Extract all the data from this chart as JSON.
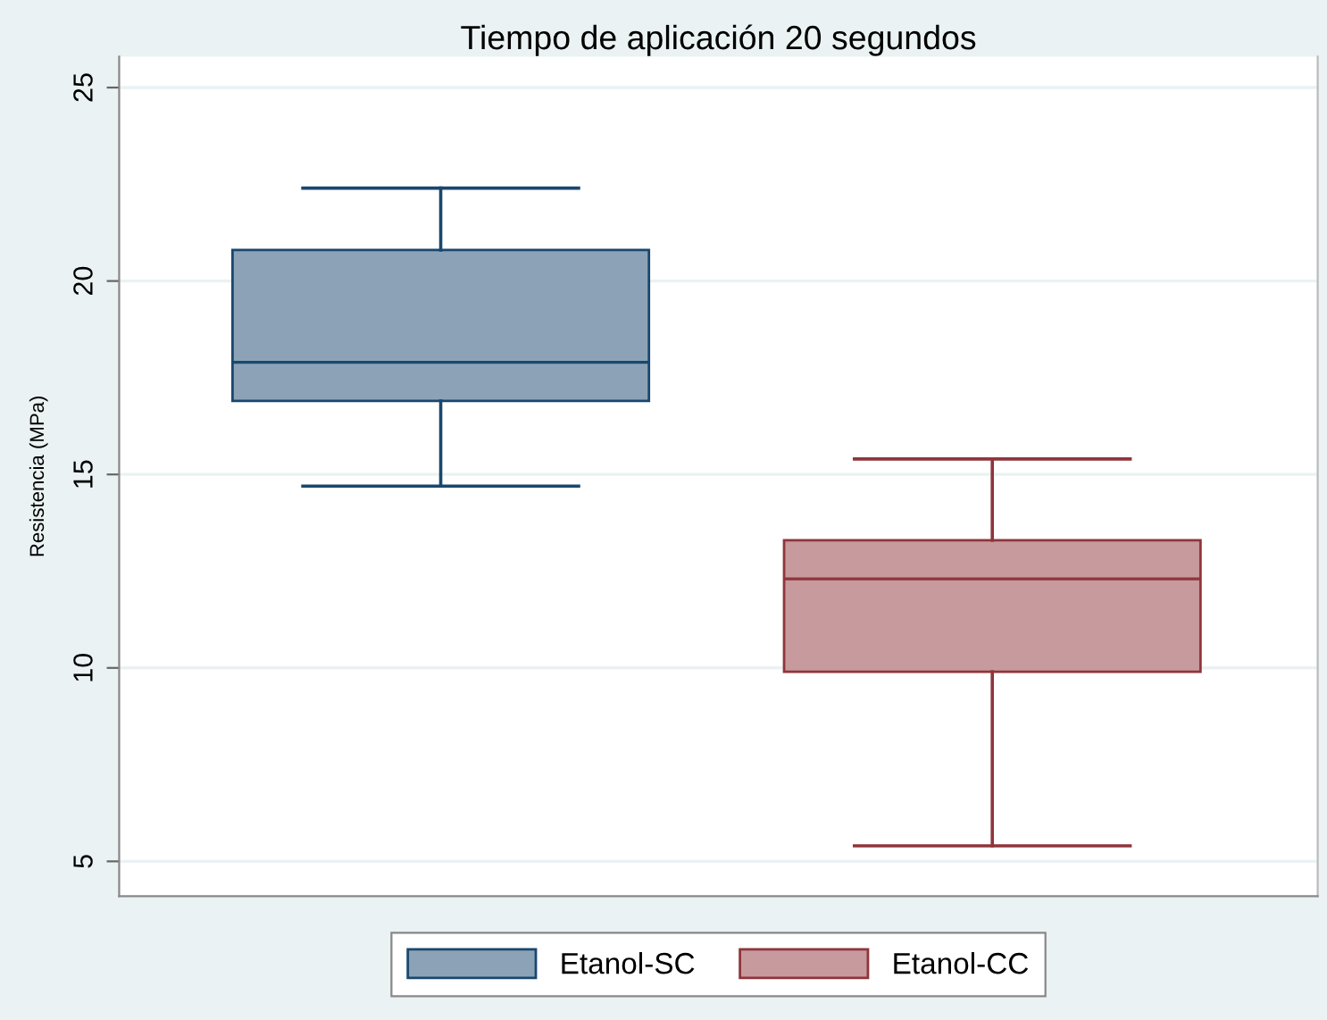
{
  "chart_data": {
    "type": "box",
    "title": "Tiempo de aplicación 20 segundos",
    "ylabel": "Resistencia (MPa)",
    "categories": [
      null
    ],
    "series": [
      {
        "name": "Etanol-SC",
        "color": "#8ca3b7",
        "boxes": [
          {
            "low": 14.7,
            "q1": 16.9,
            "median": 17.9,
            "q3": 20.8,
            "high": 22.4
          }
        ]
      },
      {
        "name": "Etanol-CC",
        "color": "#c79a9d",
        "boxes": [
          {
            "low": 5.4,
            "q1": 9.9,
            "median": 12.3,
            "q3": 13.3,
            "high": 15.4
          }
        ]
      }
    ],
    "ylim": [
      4.1,
      25.8
    ],
    "yticks": [
      5,
      10,
      15,
      20,
      25
    ],
    "grid": "y",
    "legend": "bottom",
    "tick_labels": "y"
  }
}
